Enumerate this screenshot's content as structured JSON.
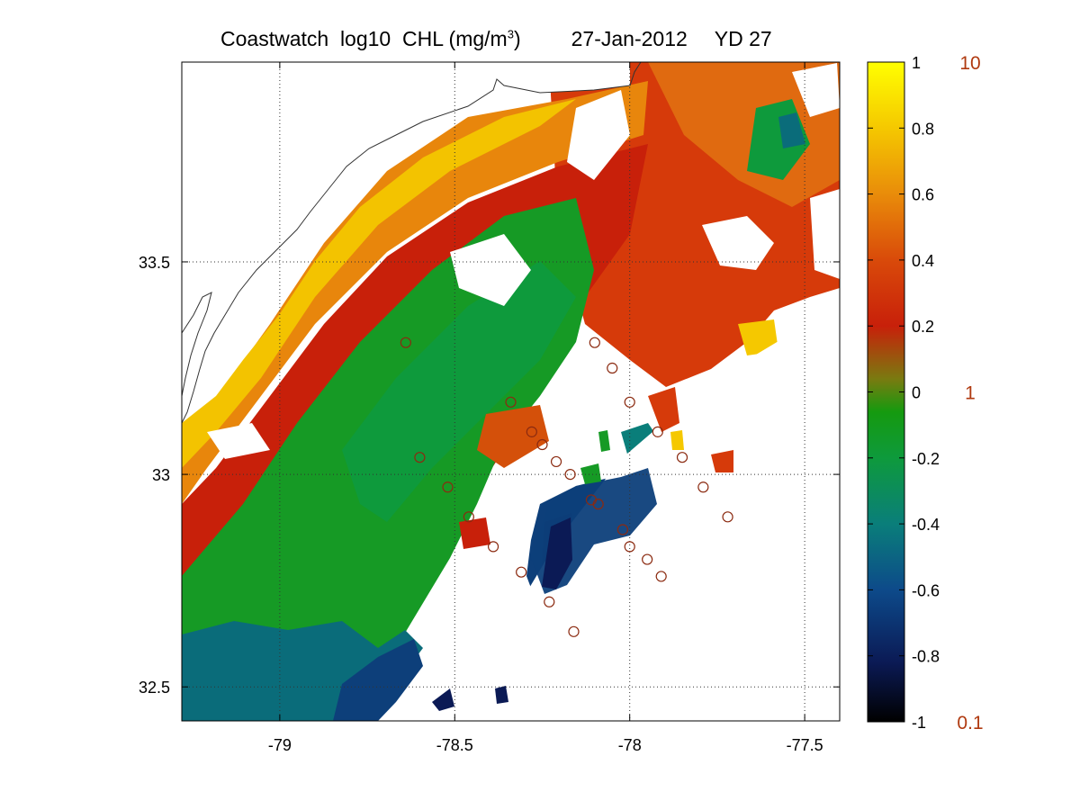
{
  "title": {
    "main": "Coastwatch  log10  CHL (mg/m",
    "superscript": "3",
    "close": ")",
    "date": "27-Jan-2012",
    "yearday": "YD 27"
  },
  "map": {
    "lon_range": [
      -79.28,
      -77.4
    ],
    "lat_range": [
      32.42,
      33.97
    ],
    "x_ticks": [
      {
        "value": -79,
        "label": "-79"
      },
      {
        "value": -78.5,
        "label": "-78.5"
      },
      {
        "value": -78,
        "label": "-78"
      },
      {
        "value": -77.5,
        "label": "-77.5"
      }
    ],
    "y_ticks": [
      {
        "value": 33.5,
        "label": "33.5"
      },
      {
        "value": 33,
        "label": "33"
      },
      {
        "value": 32.5,
        "label": "32.5"
      }
    ],
    "grid": true,
    "stations": [
      [
        -78.64,
        33.31
      ],
      [
        -78.6,
        33.04
      ],
      [
        -78.52,
        32.97
      ],
      [
        -78.46,
        32.9
      ],
      [
        -78.39,
        32.83
      ],
      [
        -78.34,
        33.17
      ],
      [
        -78.28,
        33.1
      ],
      [
        -78.25,
        33.07
      ],
      [
        -78.21,
        33.03
      ],
      [
        -78.17,
        33.0
      ],
      [
        -78.31,
        32.77
      ],
      [
        -78.23,
        32.7
      ],
      [
        -78.16,
        32.63
      ],
      [
        -78.11,
        32.94
      ],
      [
        -78.09,
        32.93
      ],
      [
        -78.02,
        32.87
      ],
      [
        -78.0,
        32.83
      ],
      [
        -77.95,
        32.8
      ],
      [
        -78.0,
        33.17
      ],
      [
        -77.92,
        33.1
      ],
      [
        -77.85,
        33.04
      ],
      [
        -77.79,
        32.97
      ],
      [
        -77.72,
        32.9
      ],
      [
        -77.91,
        32.76
      ],
      [
        -78.1,
        33.31
      ],
      [
        -78.05,
        33.25
      ]
    ]
  },
  "colorbar": {
    "min": -1,
    "max": 1,
    "ticks": [
      {
        "value": 1,
        "label": "1"
      },
      {
        "value": 0.8,
        "label": "0.8"
      },
      {
        "value": 0.6,
        "label": "0.6"
      },
      {
        "value": 0.4,
        "label": "0.4"
      },
      {
        "value": 0.2,
        "label": "0.2"
      },
      {
        "value": 0,
        "label": "0"
      },
      {
        "value": -0.2,
        "label": "-0.2"
      },
      {
        "value": -0.4,
        "label": "-0.4"
      },
      {
        "value": -0.6,
        "label": "-0.6"
      },
      {
        "value": -0.8,
        "label": "-0.8"
      },
      {
        "value": -1,
        "label": "-1"
      }
    ],
    "right_labels": [
      {
        "value": 1,
        "label": "10"
      },
      {
        "value": 0,
        "label": "1"
      },
      {
        "value": -1,
        "label": "0.1"
      }
    ],
    "colors": [
      "#000000",
      "#0b1a55",
      "#0d4a8a",
      "#0a7e7a",
      "#0e9a3c",
      "#159a0f",
      "#7a7a10",
      "#c8200a",
      "#d94a0a",
      "#e98c0a",
      "#f5c800",
      "#ffff00"
    ]
  }
}
